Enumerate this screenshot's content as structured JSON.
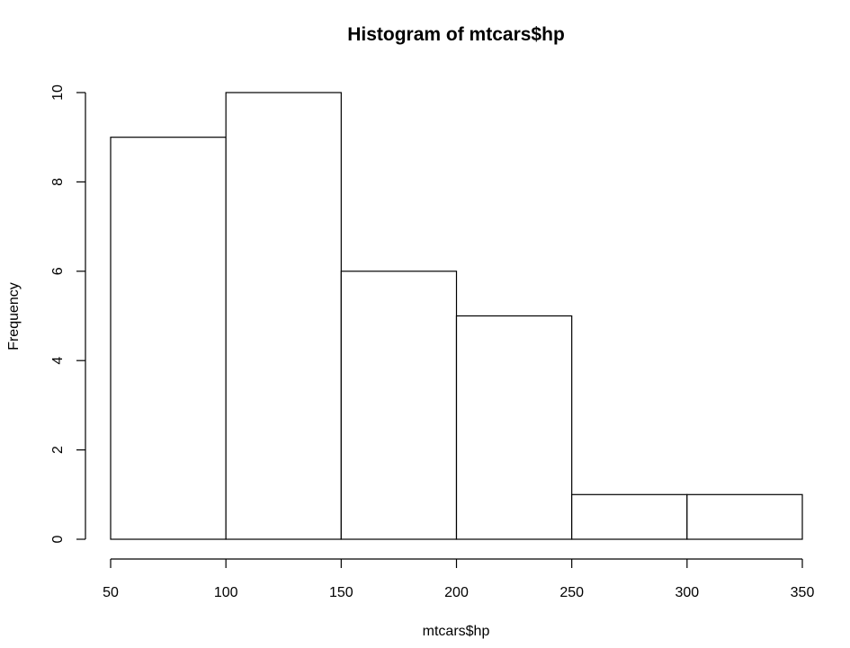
{
  "chart_data": {
    "type": "bar",
    "title": "Histogram of mtcars$hp",
    "xlabel": "mtcars$hp",
    "ylabel": "Frequency",
    "bins": [
      {
        "start": 50,
        "end": 100,
        "count": 9
      },
      {
        "start": 100,
        "end": 150,
        "count": 10
      },
      {
        "start": 150,
        "end": 200,
        "count": 6
      },
      {
        "start": 200,
        "end": 250,
        "count": 5
      },
      {
        "start": 250,
        "end": 300,
        "count": 1
      },
      {
        "start": 300,
        "end": 350,
        "count": 1
      }
    ],
    "xlim": [
      50,
      350
    ],
    "ylim": [
      0,
      10
    ],
    "x_ticks": [
      "50",
      "100",
      "150",
      "200",
      "250",
      "300",
      "350"
    ],
    "y_ticks": [
      "0",
      "2",
      "4",
      "6",
      "8",
      "10"
    ],
    "grid": false,
    "bar_color": "#ffffff",
    "edge_color": "#000000"
  }
}
